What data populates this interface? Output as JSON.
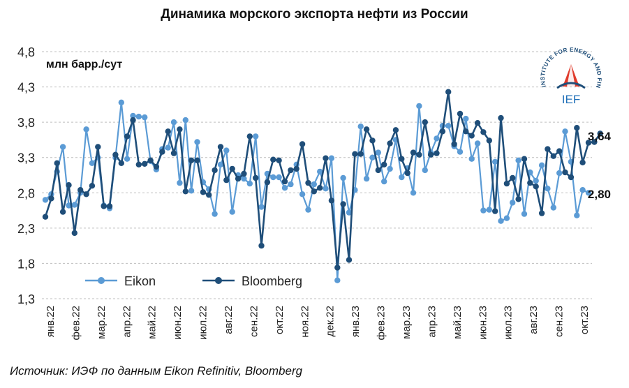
{
  "title": "Динамика морского экспорта нефти из России",
  "unit_label": "млн барр./сут",
  "source": "Источник: ИЭФ по данным Eikon Refinitiv, Bloomberg",
  "logo": {
    "ring_text": "INSTITUTE FOR ENERGY AND FINANCE",
    "abbr": "IEF"
  },
  "end_labels": {
    "bloomberg": "3,64",
    "eikon": "2,80"
  },
  "colors": {
    "eikon": "#5b9bd5",
    "bloomberg": "#1f4e79",
    "grid": "#bfbfbf"
  },
  "chart_data": {
    "type": "line",
    "yticks": [
      "1,3",
      "1,8",
      "2,3",
      "2,8",
      "3,3",
      "3,8",
      "4,3",
      "4,8"
    ],
    "ylim": [
      1.3,
      4.8
    ],
    "grid": true,
    "legend_position": "bottom-left",
    "x_tick_labels": [
      "янв.22",
      "фев.22",
      "мар.22",
      "апр.22",
      "май.22",
      "июн.22",
      "июл.22",
      "авг.22",
      "сен.22",
      "окт.22",
      "ноя.22",
      "дек.22",
      "янв.23",
      "фев.23",
      "мар.23",
      "апр.23",
      "май.23",
      "июн.23",
      "июл.23",
      "авг.23",
      "сен.23",
      "окт.23"
    ],
    "series": [
      {
        "name": "Eikon",
        "values": [
          2.7,
          2.78,
          3.1,
          3.45,
          2.62,
          2.63,
          2.8,
          3.7,
          3.22,
          3.3,
          2.62,
          2.58,
          3.3,
          4.08,
          3.28,
          3.89,
          3.88,
          3.87,
          3.25,
          3.13,
          3.42,
          3.44,
          3.8,
          2.94,
          3.83,
          2.83,
          3.52,
          2.95,
          2.85,
          2.5,
          3.2,
          3.4,
          2.53,
          3.05,
          3.0,
          2.93,
          3.6,
          2.6,
          3.07,
          3.02,
          3.02,
          2.87,
          2.92,
          3.2,
          2.78,
          2.56,
          2.92,
          3.1,
          2.86,
          3.29,
          1.56,
          3.01,
          2.52,
          2.84,
          3.74,
          3.0,
          3.3,
          3.37,
          2.96,
          3.14,
          3.55,
          3.02,
          3.15,
          2.8,
          4.03,
          3.12,
          3.37,
          3.57,
          3.75,
          3.75,
          3.46,
          3.38,
          3.85,
          3.28,
          3.5,
          2.55,
          2.56,
          3.24,
          2.4,
          2.44,
          2.66,
          3.26,
          2.5,
          3.09,
          2.97,
          3.19,
          2.86,
          2.59,
          3.08,
          3.67,
          3.24,
          2.48,
          2.84,
          2.8
        ]
      },
      {
        "name": "Bloomberg",
        "values": [
          2.46,
          2.72,
          3.22,
          2.53,
          2.91,
          2.23,
          2.84,
          2.78,
          2.9,
          3.45,
          2.61,
          2.61,
          3.34,
          3.22,
          3.6,
          3.83,
          3.2,
          3.21,
          3.26,
          3.17,
          3.38,
          3.67,
          3.36,
          3.7,
          2.82,
          3.26,
          3.26,
          2.81,
          2.77,
          3.12,
          3.45,
          2.98,
          3.14,
          3.0,
          3.07,
          3.6,
          3.01,
          2.05,
          2.95,
          3.27,
          3.26,
          2.96,
          3.12,
          3.14,
          3.49,
          2.94,
          2.82,
          2.87,
          3.29,
          2.69,
          1.74,
          2.64,
          1.85,
          3.35,
          3.35,
          3.7,
          3.54,
          3.12,
          3.2,
          3.5,
          3.69,
          3.28,
          3.08,
          3.37,
          3.34,
          3.8,
          3.34,
          3.36,
          3.67,
          4.23,
          3.49,
          3.92,
          3.67,
          3.61,
          3.79,
          3.66,
          3.54,
          2.54,
          3.86,
          2.93,
          3.01,
          2.71,
          3.28,
          2.94,
          2.89,
          2.51,
          3.42,
          3.32,
          3.39,
          3.09,
          3.02,
          3.72,
          3.23,
          3.51,
          3.52,
          3.64
        ]
      }
    ]
  }
}
